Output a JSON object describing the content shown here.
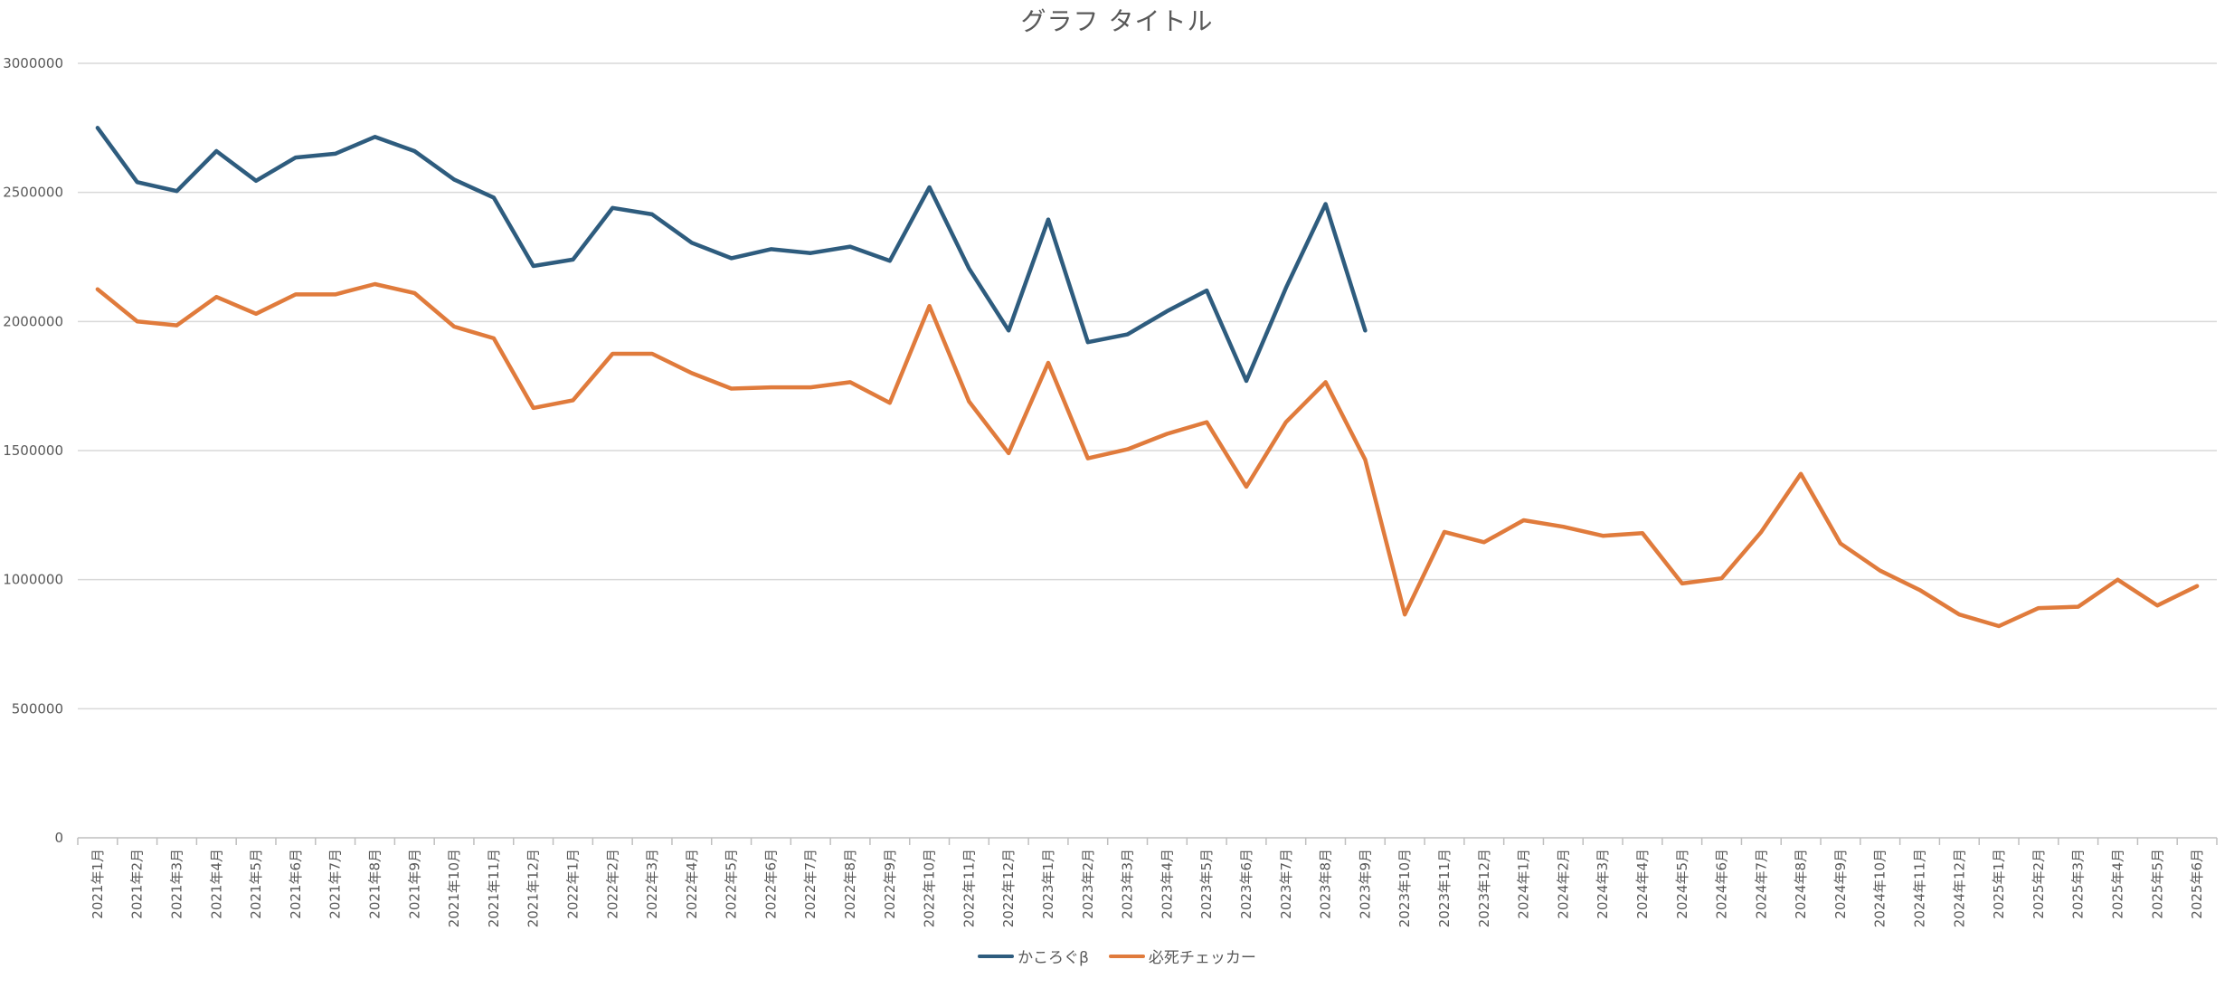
{
  "chart_data": {
    "type": "line",
    "title": "グラフ タイトル",
    "xlabel": "",
    "ylabel": "",
    "ylim": [
      0,
      3000000
    ],
    "yticks": [
      "0",
      "500000",
      "1000000",
      "1500000",
      "2000000",
      "2500000",
      "3000000"
    ],
    "grid": true,
    "legend_position": "bottom",
    "categories": [
      "2021年1月",
      "2021年2月",
      "2021年3月",
      "2021年4月",
      "2021年5月",
      "2021年6月",
      "2021年7月",
      "2021年8月",
      "2021年9月",
      "2021年10月",
      "2021年11月",
      "2021年12月",
      "2022年1月",
      "2022年2月",
      "2022年3月",
      "2022年4月",
      "2022年5月",
      "2022年6月",
      "2022年7月",
      "2022年8月",
      "2022年9月",
      "2022年10月",
      "2022年11月",
      "2022年12月",
      "2023年1月",
      "2023年2月",
      "2023年3月",
      "2023年4月",
      "2023年5月",
      "2023年6月",
      "2023年7月",
      "2023年8月",
      "2023年9月",
      "2023年10月",
      "2023年11月",
      "2023年12月",
      "2024年1月",
      "2024年2月",
      "2024年3月",
      "2024年4月",
      "2024年5月",
      "2024年6月",
      "2024年7月",
      "2024年8月",
      "2024年9月",
      "2024年10月",
      "2024年11月",
      "2024年12月",
      "2025年1月",
      "2025年2月",
      "2025年3月",
      "2025年4月",
      "2025年5月",
      "2025年6月"
    ],
    "series": [
      {
        "name": "かころぐβ",
        "color": "#2e5c7e",
        "values": [
          2750000,
          2540000,
          2505000,
          2660000,
          2545000,
          2635000,
          2650000,
          2715000,
          2660000,
          2550000,
          2480000,
          2215000,
          2240000,
          2440000,
          2415000,
          2305000,
          2245000,
          2280000,
          2265000,
          2290000,
          2235000,
          2520000,
          2205000,
          1965000,
          2395000,
          1920000,
          1950000,
          2040000,
          2120000,
          1770000,
          2130000,
          2455000,
          1965000,
          null,
          null,
          null,
          null,
          null,
          null,
          null,
          null,
          null,
          null,
          null,
          null,
          null,
          null,
          null,
          null,
          null,
          null,
          null,
          null,
          null
        ]
      },
      {
        "name": "必死チェッカー",
        "color": "#e07b3c",
        "values": [
          2125000,
          2000000,
          1985000,
          2095000,
          2030000,
          2105000,
          2105000,
          2145000,
          2110000,
          1980000,
          1935000,
          1665000,
          1695000,
          1875000,
          1875000,
          1800000,
          1740000,
          1745000,
          1745000,
          1765000,
          1685000,
          2060000,
          1690000,
          1490000,
          1840000,
          1470000,
          1505000,
          1565000,
          1610000,
          1360000,
          1610000,
          1765000,
          1465000,
          865000,
          1185000,
          1145000,
          1230000,
          1205000,
          1170000,
          1180000,
          985000,
          1005000,
          1185000,
          1410000,
          1140000,
          1035000,
          960000,
          865000,
          820000,
          890000,
          895000,
          1000000,
          900000,
          975000
        ]
      }
    ]
  }
}
